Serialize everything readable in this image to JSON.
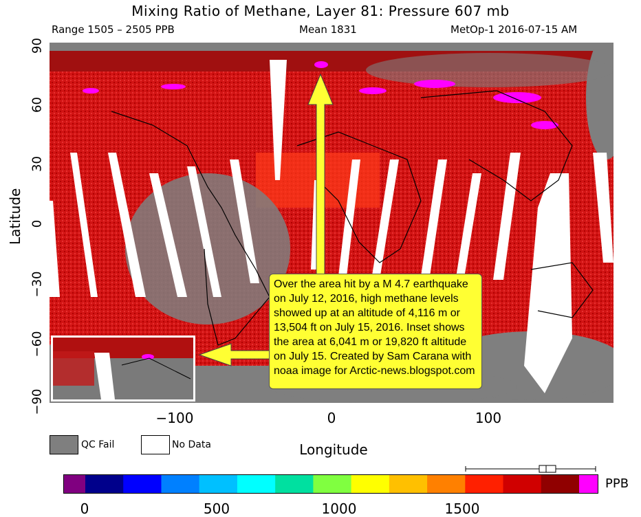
{
  "header": {
    "title": "Mixing Ratio of Methane, Layer 81: Pressure 607 mb",
    "range": "Range 1505 – 2505 PPB",
    "mean": "Mean 1831",
    "source": "MetOp-1 2016-07-15 AM"
  },
  "axes": {
    "ylabel": "Latitude",
    "xlabel": "Longitude",
    "yticks": [
      "90",
      "60",
      "30",
      "0",
      "−30",
      "−60",
      "−90"
    ],
    "xticks": [
      "−100",
      "0",
      "100"
    ]
  },
  "legend": {
    "qc_fail": "QC Fail",
    "no_data": "No Data",
    "qc_color": "#7f7f7f",
    "no_data_color": "#ffffff"
  },
  "annotation": {
    "text": "Over the area hit by a M 4.7 earthquake on July 12, 2016, high methane levels showed up at an altitude of 4,116 m or 13,504 ft on July 15, 2016.   Inset shows the area at 6,041 m or 19,820 ft altitude on July 15.  Created by Sam Carana with noaa image for Arctic-news.blogspot.com",
    "arrow_color": "#ffff33"
  },
  "colorbar": {
    "unit": "PPB",
    "labels": [
      "0",
      "500",
      "1000",
      "1500"
    ],
    "colors": [
      "#800080",
      "#00008b",
      "#0000ff",
      "#0080ff",
      "#00c0ff",
      "#00ffff",
      "#00e0a0",
      "#80ff40",
      "#ffff00",
      "#ffc000",
      "#ff8000",
      "#ff2000",
      "#d00000",
      "#900000",
      "#ff00ff"
    ]
  },
  "chart_data": {
    "type": "heatmap",
    "title": "Mixing Ratio of Methane, Layer 81: Pressure 607 mb",
    "xlabel": "Longitude",
    "ylabel": "Latitude",
    "xlim": [
      -180,
      180
    ],
    "ylim": [
      -90,
      90
    ],
    "x_ticks": [
      -100,
      0,
      100
    ],
    "y_ticks": [
      90,
      60,
      30,
      0,
      -30,
      -60,
      -90
    ],
    "value_range_ppb": [
      1505,
      2505
    ],
    "mean_ppb": 1831,
    "colorbar_ticks": [
      0,
      500,
      1000,
      1500
    ],
    "colorbar_unit": "PPB",
    "categories": [
      "QC Fail",
      "No Data"
    ]
  }
}
